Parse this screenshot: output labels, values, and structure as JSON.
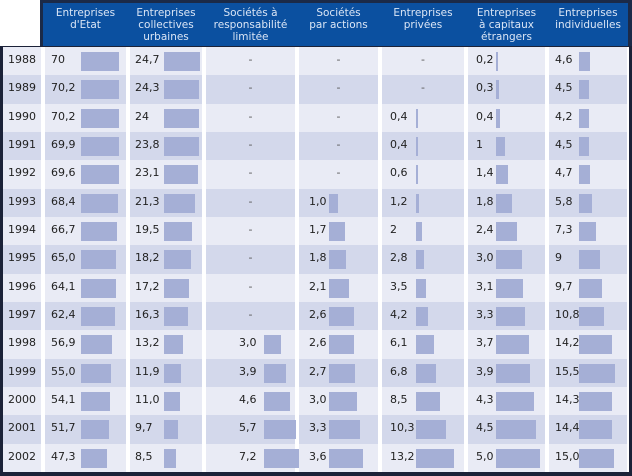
{
  "colors": {
    "header_bg": "#0b50a0",
    "bar": "#a5afd6",
    "row_light": "#e9ebf5",
    "row_dark": "#d3d8eb"
  },
  "chart_data": {
    "type": "table",
    "columns": [
      {
        "key": "etat",
        "label": "Entreprises\nd'Etat"
      },
      {
        "key": "collectives",
        "label": "Entreprises\ncollectives\nurbaines"
      },
      {
        "key": "sarl",
        "label": "Sociétés à\nresponsabilité\nlimitée"
      },
      {
        "key": "sa",
        "label": "Sociétés\npar actions"
      },
      {
        "key": "privees",
        "label": "Entreprises\nprivées"
      },
      {
        "key": "etrangers",
        "label": "Entreprises\nà capitaux\nétrangers"
      },
      {
        "key": "individuelles",
        "label": "Entreprises\nindividuelles"
      }
    ],
    "rows": [
      {
        "year": "1988",
        "values": [
          "70",
          "24,7",
          "-",
          "-",
          "-",
          "0,2",
          "4,6"
        ]
      },
      {
        "year": "1989",
        "values": [
          "70,2",
          "24,3",
          "-",
          "-",
          "-",
          "0,3",
          "4,5"
        ]
      },
      {
        "year": "1990",
        "values": [
          "70,2",
          "24",
          "-",
          "-",
          "0,4",
          "0,4",
          "4,2"
        ]
      },
      {
        "year": "1991",
        "values": [
          "69,9",
          "23,8",
          "-",
          "-",
          "0,4",
          "1",
          "4,5"
        ]
      },
      {
        "year": "1992",
        "values": [
          "69,6",
          "23,1",
          "-",
          "-",
          "0,6",
          "1,4",
          "4,7"
        ]
      },
      {
        "year": "1993",
        "values": [
          "68,4",
          "21,3",
          "-",
          "1,0",
          "1,2",
          "1,8",
          "5,8"
        ]
      },
      {
        "year": "1994",
        "values": [
          "66,7",
          "19,5",
          "-",
          "1,7",
          "2",
          "2,4",
          "7,3"
        ]
      },
      {
        "year": "1995",
        "values": [
          "65,0",
          "18,2",
          "-",
          "1,8",
          "2,8",
          "3,0",
          "9"
        ]
      },
      {
        "year": "1996",
        "values": [
          "64,1",
          "17,2",
          "-",
          "2,1",
          "3,5",
          "3,1",
          "9,7"
        ]
      },
      {
        "year": "1997",
        "values": [
          "62,4",
          "16,3",
          "-",
          "2,6",
          "4,2",
          "3,3",
          "10,8"
        ]
      },
      {
        "year": "1998",
        "values": [
          "56,9",
          "13,2",
          "3,0",
          "2,6",
          "6,1",
          "3,7",
          "14,2"
        ]
      },
      {
        "year": "1999",
        "values": [
          "55,0",
          "11,9",
          "3,9",
          "2,7",
          "6,8",
          "3,9",
          "15,5"
        ]
      },
      {
        "year": "2000",
        "values": [
          "54,1",
          "11,0",
          "4,6",
          "3,0",
          "8,5",
          "4,3",
          "14,3"
        ]
      },
      {
        "year": "2001",
        "values": [
          "51,7",
          "9,7",
          "5,7",
          "3,3",
          "10,3",
          "4,5",
          "14,4"
        ]
      },
      {
        "year": "2002",
        "values": [
          "47,3",
          "8,5",
          "7,2",
          "3,6",
          "13,2",
          "5,0",
          "15,0"
        ]
      }
    ]
  }
}
